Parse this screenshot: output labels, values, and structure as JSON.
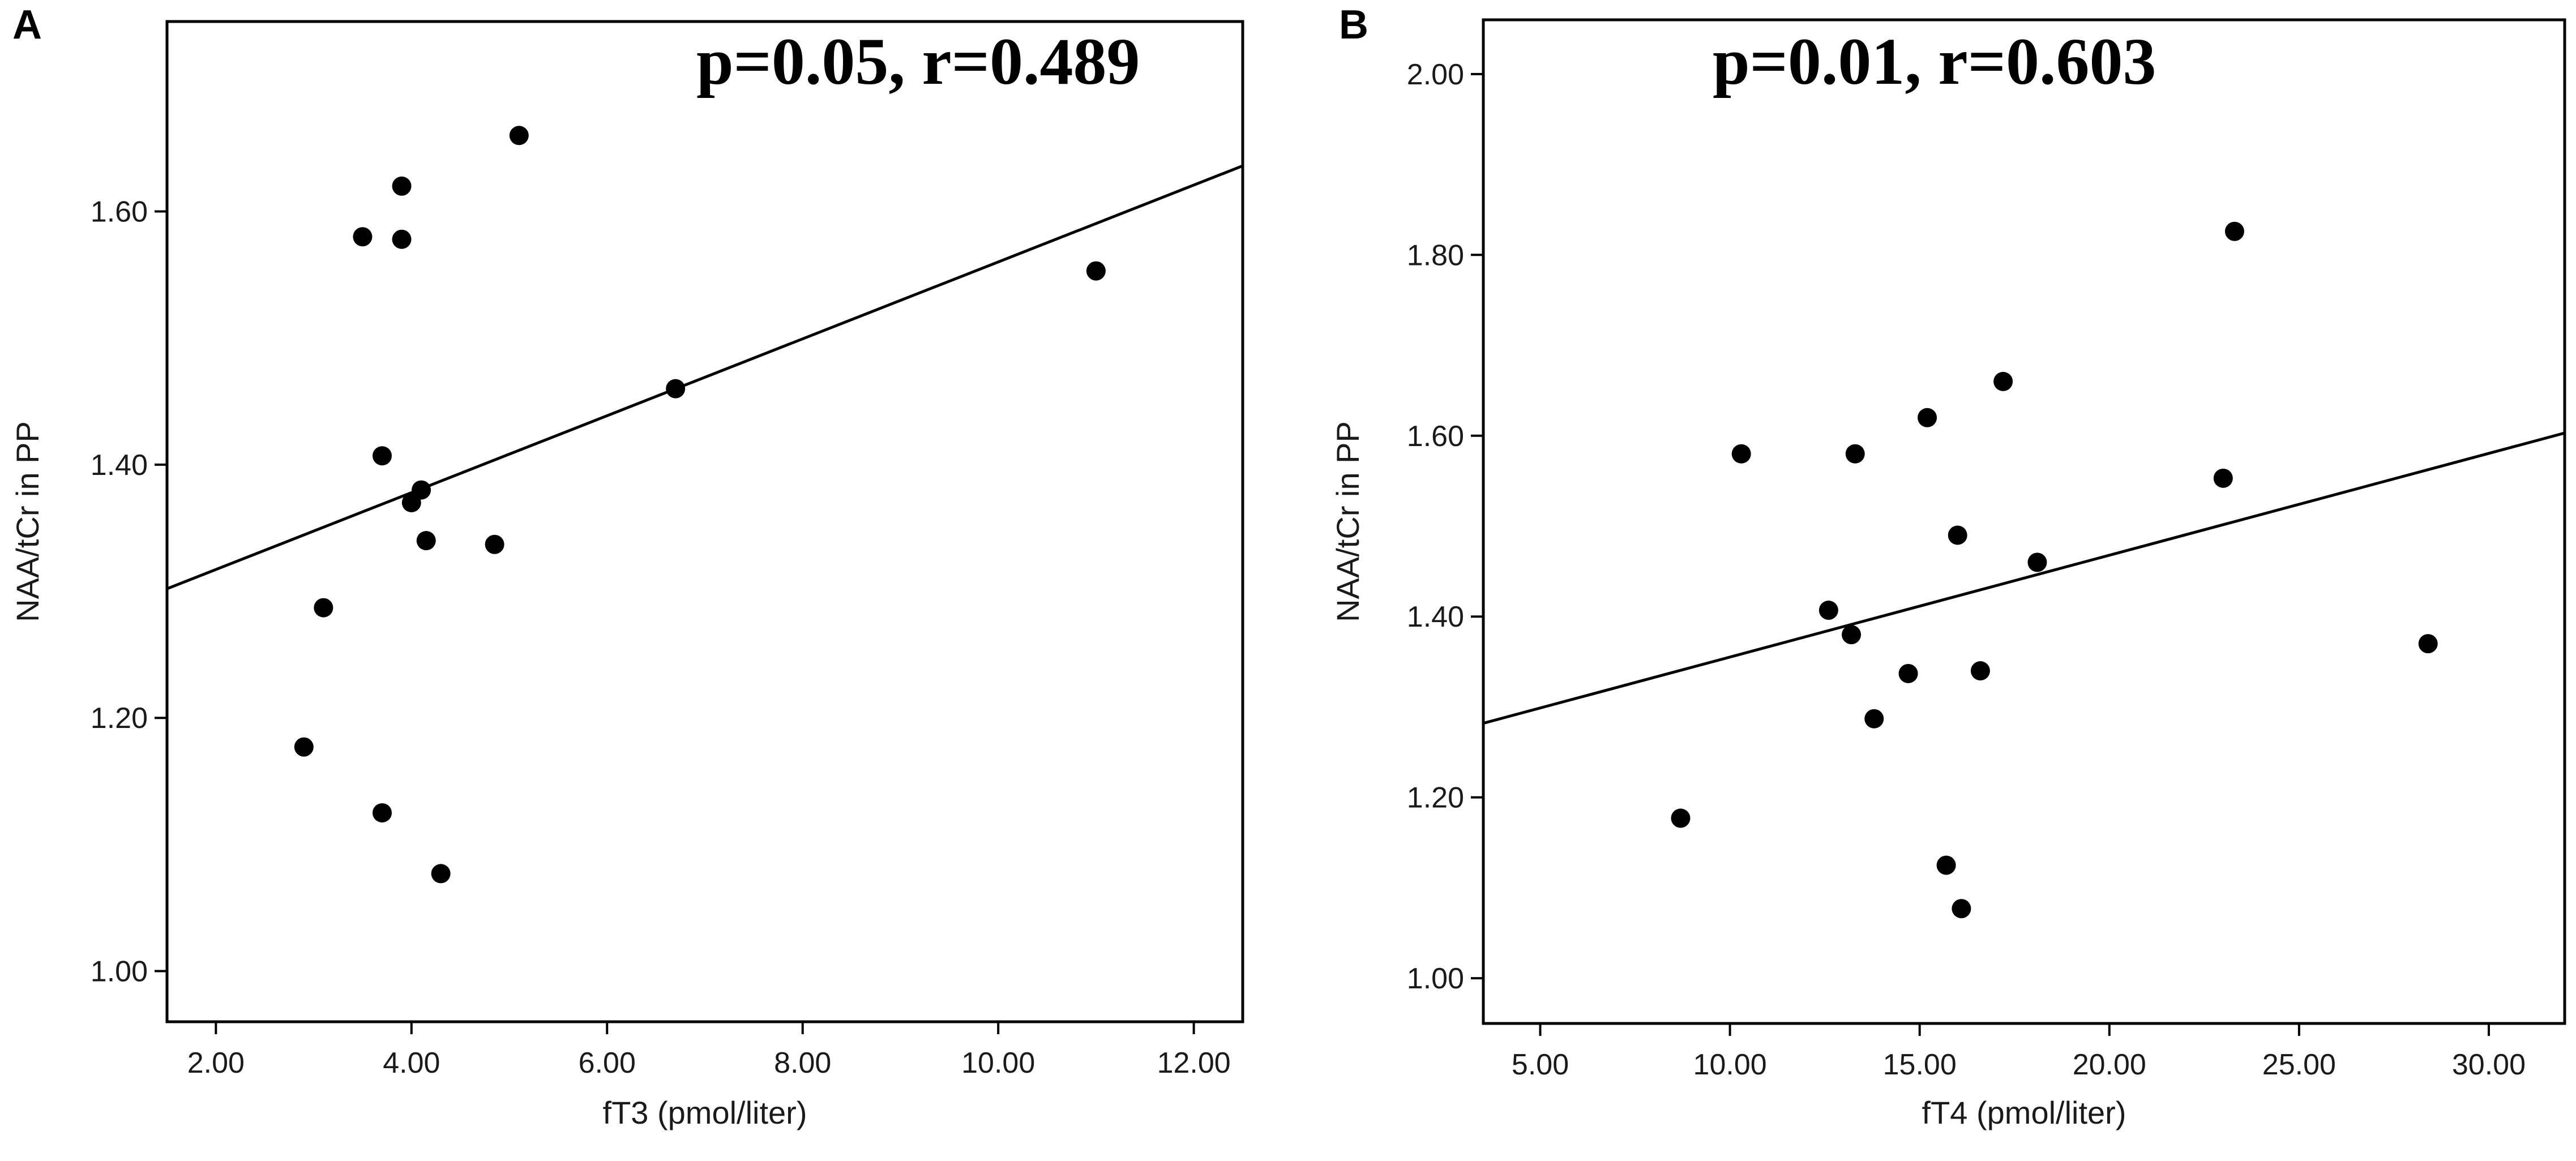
{
  "chart_data": [
    {
      "panel": "A",
      "type": "scatter",
      "annotation": "p=0.05, r=0.489",
      "xlabel": "fT3 (pmol/liter)",
      "ylabel": "NAA/tCr in PP",
      "xlim": [
        1.5,
        12.5
      ],
      "ylim": [
        0.96,
        1.75
      ],
      "xticks": [
        2,
        4,
        6,
        8,
        10,
        12
      ],
      "xtick_labels": [
        "2.00",
        "4.00",
        "6.00",
        "8.00",
        "10.00",
        "12.00"
      ],
      "yticks": [
        1.0,
        1.2,
        1.4,
        1.6
      ],
      "ytick_labels": [
        "1.00",
        "1.20",
        "1.40",
        "1.60"
      ],
      "points": {
        "x": [
          5.1,
          3.9,
          3.5,
          3.9,
          11.0,
          6.7,
          3.7,
          4.1,
          4.0,
          4.15,
          4.85,
          3.1,
          2.9,
          3.7,
          4.3
        ],
        "y": [
          1.66,
          1.62,
          1.58,
          1.578,
          1.553,
          1.46,
          1.407,
          1.38,
          1.37,
          1.34,
          1.337,
          1.287,
          1.177,
          1.125,
          1.077
        ]
      },
      "fit_line": {
        "x": [
          1.5,
          12.5
        ],
        "y": [
          1.302,
          1.636
        ]
      },
      "grid": false,
      "legend": "none"
    },
    {
      "panel": "B",
      "type": "scatter",
      "annotation": "p=0.01, r=0.603",
      "xlabel": "fT4 (pmol/liter)",
      "ylabel": "NAA/tCr in PP",
      "xlim": [
        3.5,
        32.0
      ],
      "ylim": [
        0.95,
        2.06
      ],
      "xticks": [
        5,
        10,
        15,
        20,
        25,
        30
      ],
      "xtick_labels": [
        "5.00",
        "10.00",
        "15.00",
        "20.00",
        "25.00",
        "30.00"
      ],
      "yticks": [
        1.0,
        1.2,
        1.4,
        1.6,
        1.8,
        2.0
      ],
      "ytick_labels": [
        "1.00",
        "1.20",
        "1.40",
        "1.60",
        "1.80",
        "2.00"
      ],
      "points": {
        "x": [
          23.3,
          17.2,
          15.2,
          10.3,
          13.3,
          23.0,
          16.0,
          18.1,
          12.6,
          13.2,
          28.4,
          14.7,
          16.6,
          13.8,
          8.7,
          15.7,
          16.1
        ],
        "y": [
          1.826,
          1.66,
          1.62,
          1.58,
          1.58,
          1.553,
          1.49,
          1.46,
          1.407,
          1.38,
          1.37,
          1.337,
          1.34,
          1.287,
          1.177,
          1.125,
          1.077
        ]
      },
      "fit_line": {
        "x": [
          3.5,
          32.0
        ],
        "y": [
          1.282,
          1.603
        ]
      },
      "grid": false,
      "legend": "none"
    }
  ]
}
